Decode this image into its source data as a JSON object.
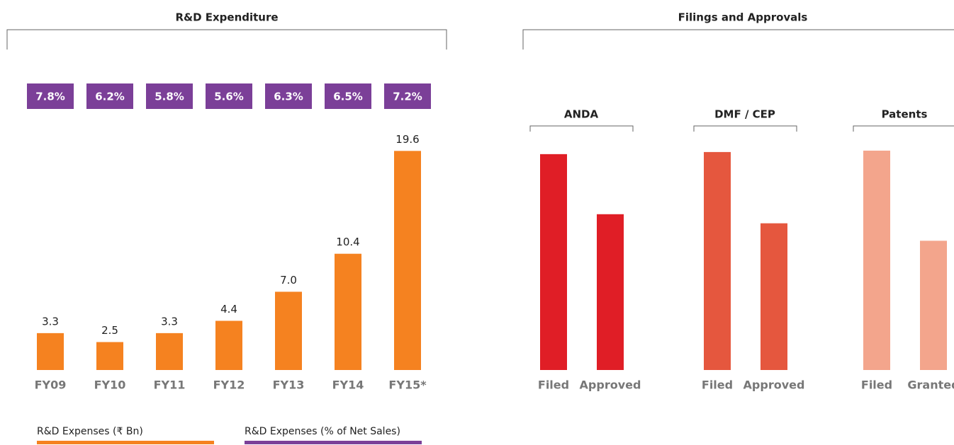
{
  "chart_data": [
    {
      "type": "bar",
      "title": "R&D Expenditure",
      "categories": [
        "FY09",
        "FY10",
        "FY11",
        "FY12",
        "FY13",
        "FY14",
        "FY15*"
      ],
      "series": [
        {
          "name": "R&D Expenses (₹ Bn)",
          "type": "bar",
          "color": "#f58220",
          "values": [
            3.3,
            2.5,
            3.3,
            4.4,
            7.0,
            10.4,
            19.6
          ],
          "value_labels": [
            "3.3",
            "2.5",
            "3.3",
            "4.4",
            "7.0",
            "10.4",
            "19.6"
          ]
        },
        {
          "name": "R&D Expenses (% of Net Sales)",
          "type": "label",
          "color": "#7b3f98",
          "values": [
            7.8,
            6.2,
            5.8,
            5.6,
            6.3,
            6.5,
            7.2
          ],
          "value_labels": [
            "7.8%",
            "6.2%",
            "5.8%",
            "5.6%",
            "6.3%",
            "6.5%",
            "7.2%"
          ]
        }
      ],
      "ylim": [
        0,
        20
      ]
    },
    {
      "type": "grouped-bar",
      "title": "Filings and Approvals",
      "groups": [
        {
          "name": "ANDA",
          "color": "#e01e26",
          "categories": [
            "Filed",
            "Approved"
          ],
          "values": [
            309,
            223
          ]
        },
        {
          "name": "DMF / CEP",
          "color": "#e5573e",
          "categories": [
            "Filed",
            "Approved"
          ],
          "values": [
            312,
            210
          ]
        },
        {
          "name": "Patents",
          "color": "#f3a58c",
          "categories": [
            "Filed",
            "Granted"
          ],
          "values": [
            314,
            185
          ]
        }
      ],
      "ylim": [
        0,
        320
      ]
    }
  ]
}
